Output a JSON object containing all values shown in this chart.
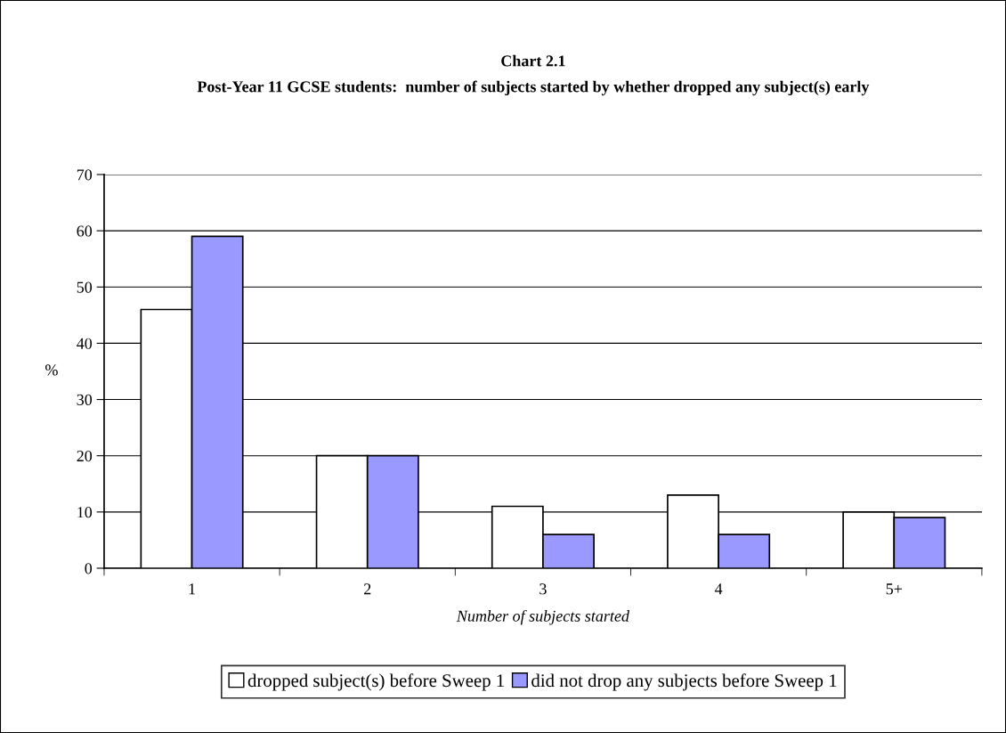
{
  "chart_data": {
    "type": "bar",
    "title": "Chart 2.1",
    "subtitle": "Post-Year 11 GCSE students:  number of subjects started by whether dropped any subject(s) early",
    "xlabel": "Number of subjects started",
    "ylabel": "%",
    "categories": [
      "1",
      "2",
      "3",
      "4",
      "5+"
    ],
    "series": [
      {
        "name": "dropped subject(s) before Sweep 1",
        "color": "#ffffff",
        "values": [
          46,
          20,
          11,
          13,
          10
        ]
      },
      {
        "name": "did not drop any subjects before Sweep 1",
        "color": "#9999ff",
        "values": [
          59,
          20,
          6,
          6,
          9
        ]
      }
    ],
    "ylim": [
      0,
      70
    ],
    "yticks": [
      0,
      10,
      20,
      30,
      40,
      50,
      60,
      70
    ],
    "grid": "y",
    "legend": "bottom"
  }
}
